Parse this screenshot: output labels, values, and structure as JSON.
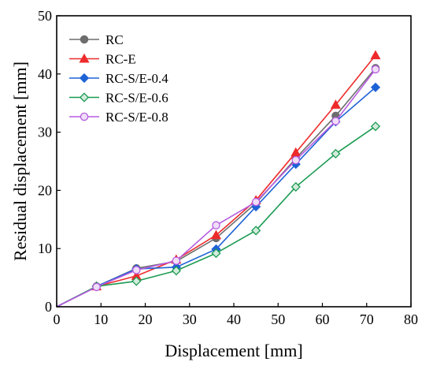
{
  "chart_data": {
    "type": "line",
    "title": "",
    "xlabel": "Displacement [mm]",
    "ylabel": "Residual displacement [mm]",
    "xlim": [
      0,
      80
    ],
    "ylim": [
      0,
      50
    ],
    "xticks": [
      0,
      10,
      20,
      30,
      40,
      50,
      60,
      70,
      80
    ],
    "yticks": [
      0,
      10,
      20,
      30,
      40,
      50
    ],
    "grid": false,
    "legend_position": "top-left",
    "x": [
      0,
      9,
      18,
      27,
      36,
      45,
      54,
      63,
      72
    ],
    "series": [
      {
        "name": "RC",
        "color": "#6d6d6d",
        "marker": "circle",
        "filled": true,
        "values": [
          0,
          3.5,
          6.6,
          7.8,
          11.8,
          17.8,
          25.5,
          32.8,
          41.0
        ]
      },
      {
        "name": "RC-E",
        "color": "#ee2b2b",
        "marker": "triangle",
        "filled": true,
        "values": [
          0,
          3.5,
          5.3,
          8.1,
          12.3,
          18.3,
          26.5,
          34.7,
          43.2
        ]
      },
      {
        "name": "RC-S/E-0.4",
        "color": "#1e63d6",
        "marker": "diamond",
        "filled": true,
        "values": [
          0,
          3.5,
          6.5,
          6.8,
          9.9,
          17.2,
          24.5,
          31.8,
          37.7
        ]
      },
      {
        "name": "RC-S/E-0.6",
        "color": "#1c9b52",
        "marker": "diamond",
        "filled": false,
        "values": [
          0,
          3.5,
          4.4,
          6.2,
          9.2,
          13.1,
          20.6,
          26.3,
          31.0
        ]
      },
      {
        "name": "RC-S/E-0.8",
        "color": "#b65ce0",
        "marker": "circle",
        "filled": false,
        "values": [
          0,
          3.4,
          6.3,
          7.9,
          14.0,
          18.0,
          25.2,
          31.9,
          40.8
        ]
      }
    ]
  }
}
